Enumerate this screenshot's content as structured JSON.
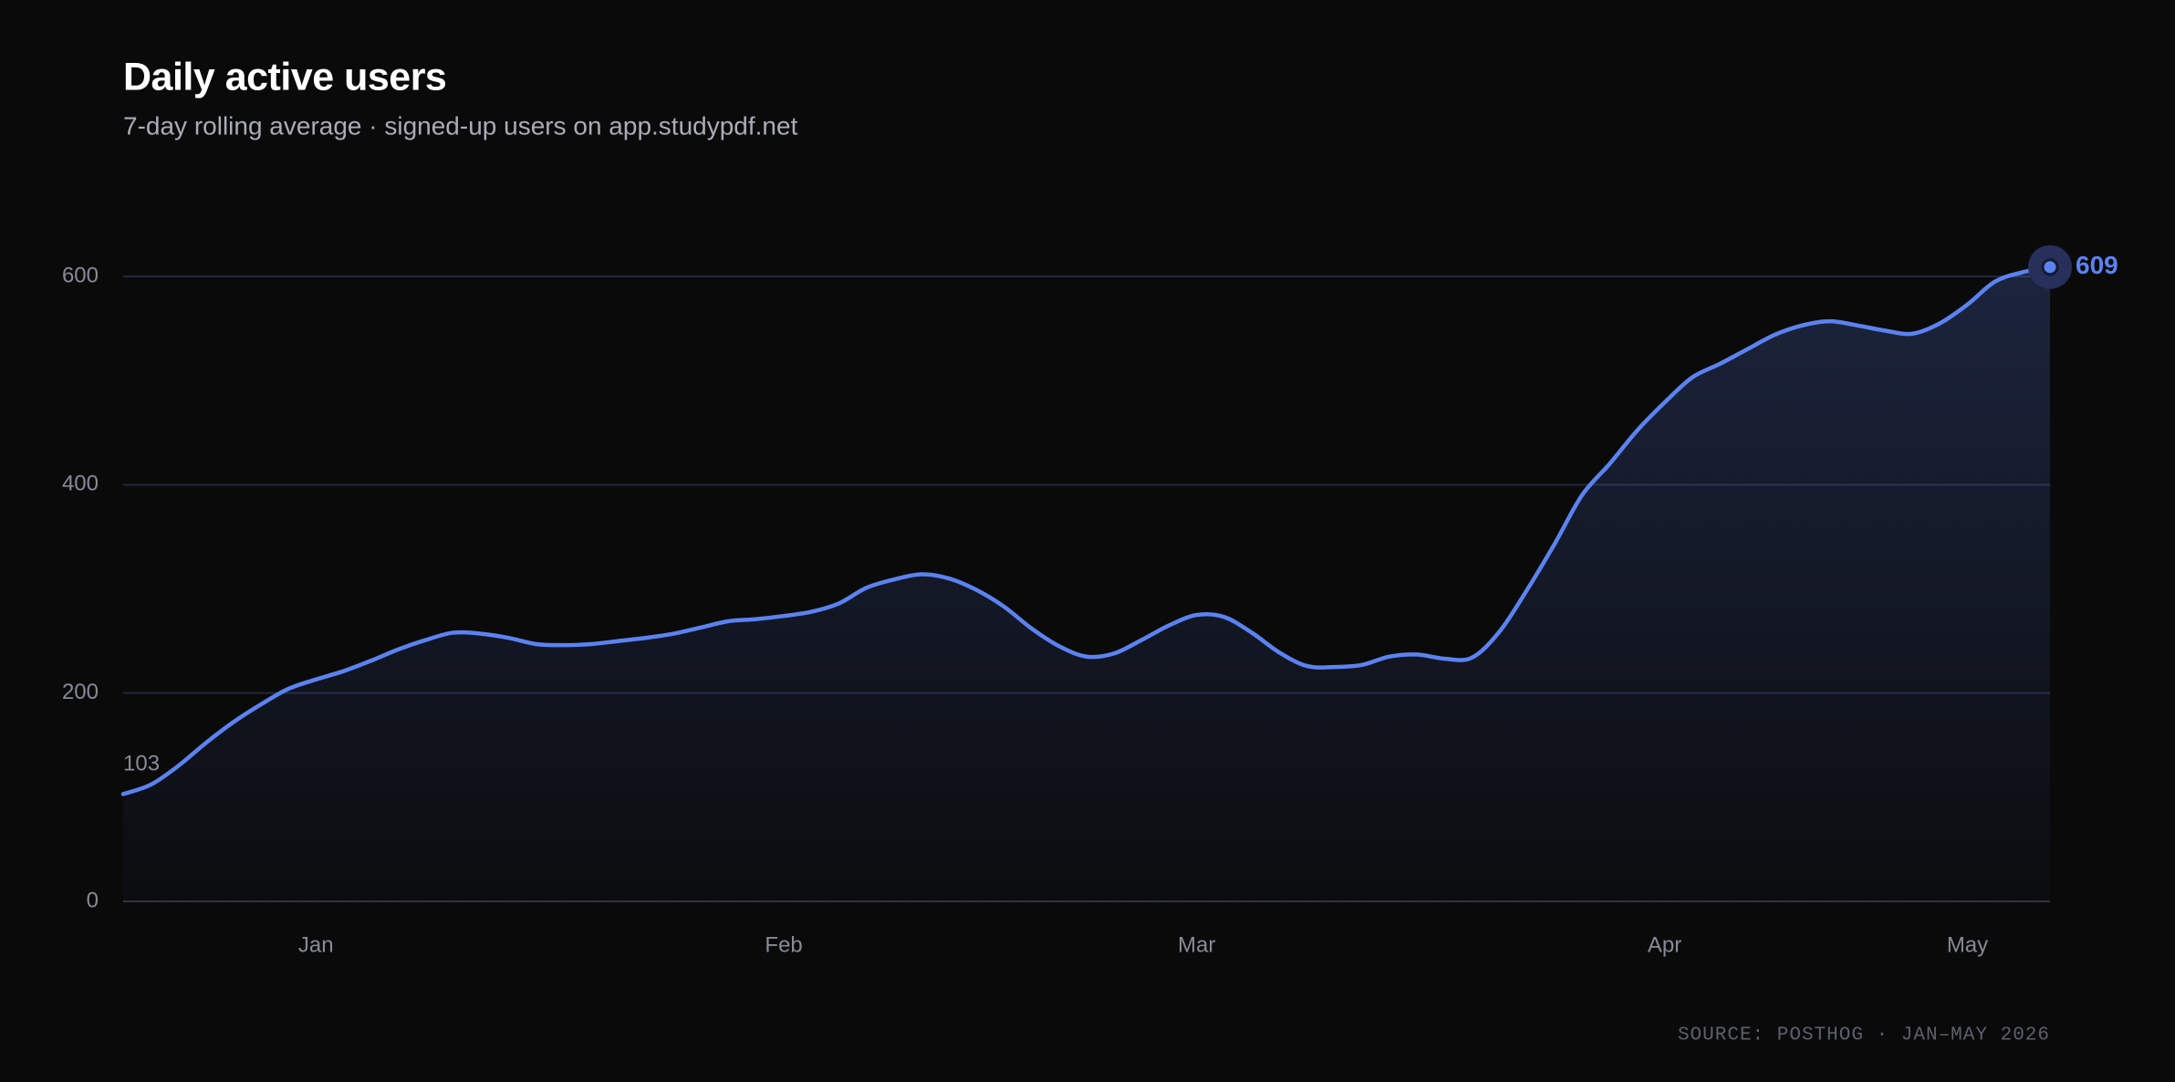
{
  "chart_data": {
    "type": "line",
    "title": "Daily active users",
    "subtitle": "7-day rolling average · signed-up users on app.studypdf.net",
    "source": "SOURCE: POSTHOG · JAN–MAY 2026",
    "categories": [
      null,
      null,
      null,
      null,
      null,
      null,
      null,
      "Jan",
      null,
      null,
      null,
      null,
      null,
      null,
      null,
      null,
      null,
      null,
      null,
      null,
      null,
      null,
      null,
      null,
      "Feb",
      null,
      null,
      null,
      null,
      null,
      null,
      null,
      null,
      null,
      null,
      null,
      null,
      null,
      null,
      "Mar",
      null,
      null,
      null,
      null,
      null,
      null,
      null,
      null,
      null,
      null,
      null,
      null,
      null,
      null,
      null,
      null,
      "Apr",
      null,
      null,
      null,
      null,
      null,
      null,
      null,
      null,
      null,
      null,
      "May",
      null,
      null,
      null
    ],
    "values": [
      103,
      112,
      130,
      152,
      172,
      189,
      204,
      213,
      221,
      231,
      242,
      251,
      258,
      257,
      253,
      247,
      246,
      247,
      250,
      253,
      257,
      263,
      269,
      271,
      274,
      278,
      286,
      301,
      309,
      314,
      310,
      299,
      283,
      262,
      245,
      235,
      238,
      251,
      265,
      275,
      273,
      258,
      239,
      226,
      225,
      227,
      235,
      237,
      233,
      234,
      259,
      299,
      343,
      390,
      420,
      452,
      479,
      503,
      516,
      530,
      544,
      553,
      557,
      553,
      548,
      545,
      555,
      573,
      595,
      604,
      609
    ],
    "color": "#5b82f0",
    "area": true,
    "grid": true,
    "ylim": [
      0,
      600
    ],
    "yticks": [
      0,
      200,
      400,
      600
    ]
  }
}
